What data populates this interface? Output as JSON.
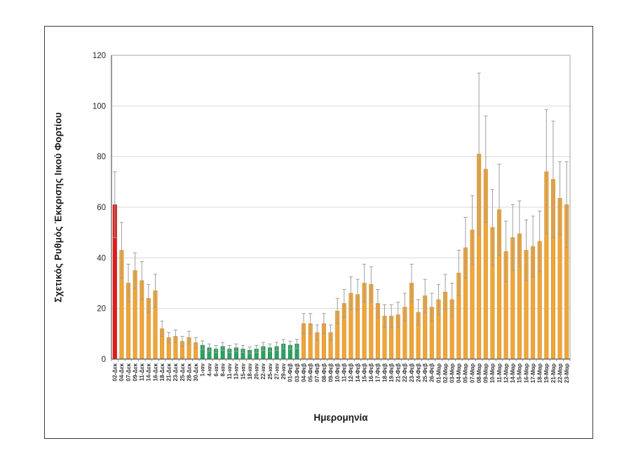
{
  "chart_data": {
    "type": "bar",
    "title": "",
    "ylabel": "Σχετικός Ρυθμός Έκκρισης Ιικού Φορτίου",
    "xlabel": "Ημερομηνία",
    "ylim": [
      0,
      120
    ],
    "y_ticks": [
      0,
      20,
      40,
      60,
      80,
      100,
      120
    ],
    "grid": true,
    "legend": "none",
    "categories": [
      "02-Δεκ",
      "04-Δεκ",
      "07-Δεκ",
      "09-Δεκ",
      "11-Δεκ",
      "14-Δεκ",
      "16-Δεκ",
      "18-Δεκ",
      "21-Δεκ",
      "23-Δεκ",
      "25-Δεκ",
      "28-Δεκ",
      "30-Δεκ",
      "1-ιαν",
      "4-ιαν",
      "6-ιαν",
      "8-ιαν",
      "11-ιαν",
      "13-ιαν",
      "15-ιαν",
      "18-ιαν",
      "20-ιαν",
      "22-ιαν",
      "25-ιαν",
      "27-ιαν",
      "29-ιαν",
      "01-Φεβ",
      "03-Φεβ",
      "04-Φεβ",
      "05-Φεβ",
      "07-Φεβ",
      "08-Φεβ",
      "09-Φεβ",
      "10-Φεβ",
      "11-Φεβ",
      "12-Φεβ",
      "14-Φεβ",
      "15-Φεβ",
      "16-Φεβ",
      "17-Φεβ",
      "18-Φεβ",
      "19-Φεβ",
      "21-Φεβ",
      "22-Φεβ",
      "23-Φεβ",
      "24-Φεβ",
      "25-Φεβ",
      "26-Φεβ",
      "01-Μαρ",
      "02-Μαρ",
      "03-Μαρ",
      "04-Μαρ",
      "05-Μαρ",
      "07-Μαρ",
      "08-Μαρ",
      "09-Μαρ",
      "10-Μαρ",
      "11-Μαρ",
      "12-Μαρ",
      "14-Μαρ",
      "15-Μαρ",
      "16-Μαρ",
      "17-Μαρ",
      "18-Μαρ",
      "19-Μαρ",
      "21-Μαρ",
      "22-Μαρ",
      "23-Μαρ"
    ],
    "values": [
      61,
      43,
      30,
      35,
      31,
      24,
      27,
      12,
      8.5,
      9,
      7,
      8.5,
      6.5,
      5.5,
      4.5,
      4,
      5,
      4,
      4.5,
      4,
      3.5,
      4,
      5,
      4.5,
      5,
      6,
      5.5,
      6,
      14,
      14,
      10.5,
      14,
      10.5,
      19,
      22,
      26,
      25.5,
      30,
      29.5,
      22,
      17,
      17,
      17.5,
      20.5,
      30,
      18.5,
      25,
      20.5,
      23.5,
      26.5,
      23.5,
      34,
      44,
      51,
      81,
      75,
      52,
      59,
      42.5,
      48,
      49.5,
      43,
      44.5,
      46.5,
      74,
      71,
      63.5,
      61
    ],
    "error_bars": [
      13,
      11,
      7.5,
      7,
      7.5,
      5.5,
      6.5,
      3,
      2,
      2.5,
      2,
      2.5,
      2,
      1.7,
      1.5,
      1.4,
      1.6,
      1.4,
      1.5,
      1.4,
      1.3,
      1.4,
      1.6,
      1.5,
      1.6,
      1.8,
      1.6,
      1.8,
      4,
      4,
      3,
      4,
      3,
      5,
      5.5,
      6.5,
      6,
      7.5,
      7,
      5.5,
      4.5,
      4.5,
      5,
      5.5,
      7.5,
      5,
      6.5,
      5.5,
      6,
      7,
      6.5,
      9,
      12,
      13.5,
      32,
      21,
      15,
      18,
      12,
      13,
      13,
      12,
      12,
      12,
      24.5,
      23,
      14.5,
      17
    ],
    "bar_color_keys": [
      "red",
      "orange",
      "orange",
      "orange",
      "orange",
      "orange",
      "orange",
      "orange",
      "orange",
      "orange",
      "orange",
      "orange",
      "orange",
      "green",
      "green",
      "green",
      "green",
      "green",
      "green",
      "green",
      "green",
      "green",
      "green",
      "green",
      "green",
      "green",
      "green",
      "green",
      "orange",
      "orange",
      "orange",
      "orange",
      "orange",
      "orange",
      "orange",
      "orange",
      "orange",
      "orange",
      "orange",
      "orange",
      "orange",
      "orange",
      "orange",
      "orange",
      "orange",
      "orange",
      "orange",
      "orange",
      "orange",
      "orange",
      "orange",
      "orange",
      "orange",
      "orange",
      "orange",
      "orange",
      "orange",
      "orange",
      "orange",
      "orange",
      "orange",
      "orange",
      "orange",
      "orange",
      "orange",
      "orange",
      "orange",
      "orange"
    ],
    "colors": {
      "red": "#E01B1B",
      "orange": "#F0A537",
      "green": "#27A35E",
      "red_edge": "#B31212",
      "orange_edge": "#C9861F",
      "green_edge": "#1B7F47",
      "error_bar": "#9E9E9E",
      "grid": "#D9D9D9",
      "plot_border": "#A6A6A6",
      "axis": "#595959",
      "tick_text": "#333333"
    },
    "legend_position": "none"
  }
}
